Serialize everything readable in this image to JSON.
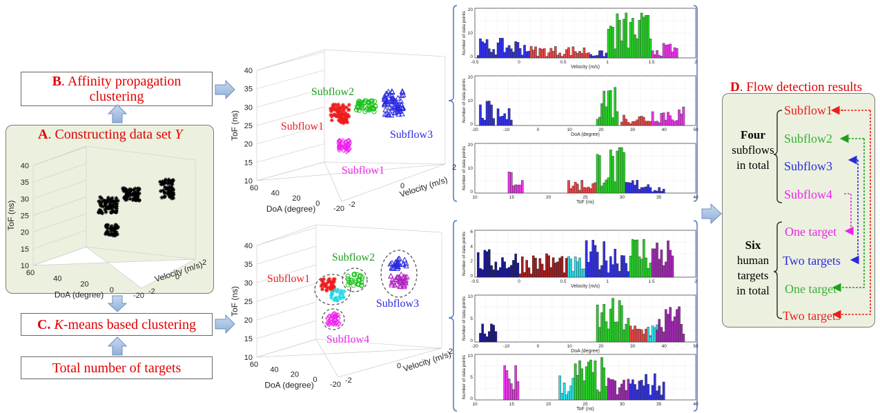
{
  "boxB": {
    "letter": "B",
    "rest": ". Affinity propagation",
    "line2": "clustering"
  },
  "panelA": {
    "letter": "A",
    "rest": ". Constructing data set ",
    "var": "Y"
  },
  "boxC": {
    "letter": "C.",
    "var": "K",
    "rest": "-means based clustering"
  },
  "boxTotal": {
    "label": "Total number of targets"
  },
  "plotA": {
    "zlabel": "ToF (ns)",
    "xlabel": "DoA (degree)",
    "ylabel": "Velocity (m/s)",
    "zticks": [
      "40",
      "35",
      "30",
      "25",
      "20",
      "15",
      "10"
    ],
    "xticks": [
      "60",
      "40",
      "20",
      "0",
      "-20"
    ],
    "yticks": [
      "2",
      "0",
      "-2"
    ]
  },
  "plotB": {
    "zlabel": "ToF (ns)",
    "xlabel": "DoA (degree)",
    "ylabel": "Velocity (m/s)",
    "zticks": [
      "40",
      "35",
      "30",
      "25",
      "20",
      "15",
      "10"
    ],
    "xticks": [
      "60",
      "40",
      "20",
      "0",
      "-20"
    ],
    "yticks": [
      "2",
      "0",
      "-2"
    ],
    "labels": [
      "Subflow1",
      "Subflow2",
      "Subflow3",
      "Subflow1"
    ]
  },
  "plotC": {
    "zlabel": "ToF (ns)",
    "xlabel": "DoA (degree)",
    "ylabel": "Velocity (m/s)",
    "zticks": [
      "40",
      "35",
      "30",
      "25",
      "20",
      "15",
      "10"
    ],
    "xticks": [
      "60",
      "40",
      "20",
      "0",
      "-20"
    ],
    "yticks": [
      "2",
      "0",
      "-2"
    ],
    "labels": [
      "Subflow1",
      "Subflow2",
      "Subflow3",
      "Subflow4"
    ]
  },
  "histTop": [
    {
      "ylabel": "Number of data points",
      "xlabel": "Velocity (m/s)",
      "yticks": [
        "20",
        "10",
        "0"
      ],
      "xticks": [
        "-0.5",
        "0",
        "0.5",
        "1",
        "1.5",
        "2"
      ]
    },
    {
      "ylabel": "Number of data points",
      "xlabel": "DoA (degree)",
      "yticks": [
        "20",
        "10",
        "0"
      ],
      "xticks": [
        "-20",
        "-10",
        "0",
        "10",
        "20",
        "30",
        "40",
        "50"
      ]
    },
    {
      "ylabel": "Number of data points",
      "xlabel": "ToF (ns)",
      "yticks": [
        "20",
        "10",
        "0"
      ],
      "xticks": [
        "10",
        "15",
        "20",
        "25",
        "30",
        "35",
        "40"
      ]
    }
  ],
  "histBottom": [
    {
      "ylabel": "Number of data points",
      "xlabel": "Velocity (m/s)",
      "yticks": [
        "6",
        "4",
        "2",
        "0"
      ],
      "xticks": [
        "-0.5",
        "0",
        "0.5",
        "1",
        "1.5",
        "2"
      ]
    },
    {
      "ylabel": "Number of data points",
      "xlabel": "DoA (degree)",
      "yticks": [
        "10",
        "5",
        "0"
      ],
      "xticks": [
        "-20",
        "-10",
        "0",
        "10",
        "20",
        "30",
        "40",
        "50"
      ]
    },
    {
      "ylabel": "Number of data points",
      "xlabel": "ToF (ns)",
      "yticks": [
        "10",
        "5",
        "0"
      ],
      "xticks": [
        "10",
        "15",
        "20",
        "25",
        "30",
        "35",
        "40"
      ]
    }
  ],
  "panelD": {
    "title_letter": "D",
    "title_rest": ". Flow detection results",
    "four_bold": "Four",
    "four_line2": "subflows",
    "four_line3": "in total",
    "six_bold": "Six",
    "six_line2": "human",
    "six_line3": "targets",
    "six_line4": "in total",
    "subflows": [
      "Subflow1",
      "Subflow2",
      "Subflow3",
      "Subflow4"
    ],
    "targets": [
      "One target",
      "Two targets",
      "One target",
      "Two targets"
    ]
  },
  "colors": {
    "red": "#ee1c1c",
    "green": "#1ec01e",
    "blue": "#2a2ae0",
    "magenta": "#ee22ee",
    "cyan": "#22d8e8",
    "darkgreen": "#3aa03a"
  }
}
